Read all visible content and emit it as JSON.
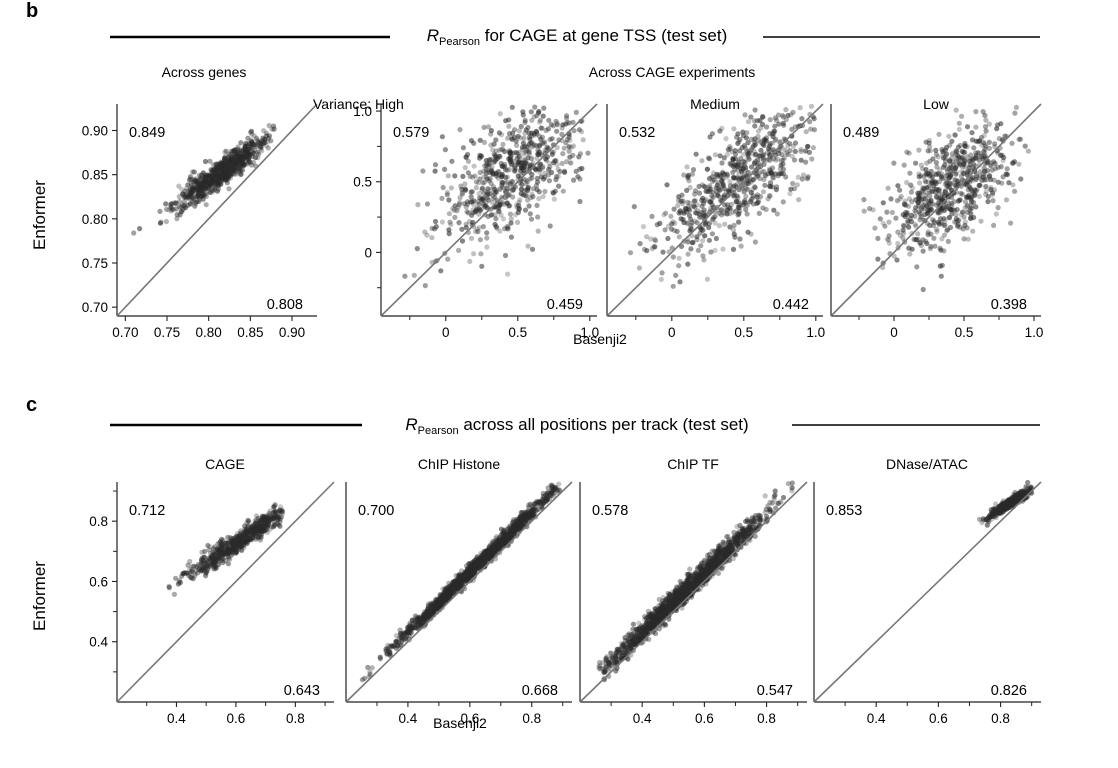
{
  "figure": {
    "panel_b": {
      "letter": "b",
      "title_prefix": "R",
      "title_subscript": "Pearson",
      "title_suffix": " for CAGE at gene TSS (test set)",
      "ylabel": "Enformer",
      "xlabel": "Basenji2",
      "group_label_genes": "Across genes",
      "group_label_experiments": "Across CAGE experiments"
    },
    "panel_c": {
      "letter": "c",
      "title_prefix": "R",
      "title_subscript": "Pearson",
      "title_suffix": " across all positions per track (test set)",
      "ylabel": "Enformer",
      "xlabel": "Basenji2"
    }
  },
  "chart_data": [
    {
      "type": "scatter",
      "panel": "b",
      "title": "Across genes",
      "xlabel": "",
      "ylabel": "Enformer",
      "xlim": [
        0.69,
        0.93
      ],
      "ylim": [
        0.69,
        0.93
      ],
      "xticks": [
        "0.70",
        "0.75",
        "0.80",
        "0.85",
        "0.90"
      ],
      "yticks": [
        "0.70",
        "0.75",
        "0.80",
        "0.85",
        "0.90"
      ],
      "x_minor": [],
      "y_minor": [],
      "diagonal": true,
      "enformer_r": "0.849",
      "basenji2_r": "0.808",
      "cloud": {
        "center": [
          0.815,
          0.853
        ],
        "spread": [
          0.028,
          0.021
        ],
        "count": 700,
        "corr": 0.92,
        "extent_x": [
          0.7,
          0.88
        ]
      }
    },
    {
      "type": "scatter",
      "panel": "b",
      "title": "Variance: High",
      "xlabel": "",
      "ylabel": "",
      "xlim": [
        -0.45,
        1.05
      ],
      "ylim": [
        -0.45,
        1.05
      ],
      "xticks": [
        "0",
        "0.5",
        "1.0"
      ],
      "yticks": [
        "0",
        "0.5",
        "1.0"
      ],
      "x_minor": [
        -0.25,
        0.25,
        0.75
      ],
      "y_minor": [
        -0.25,
        0.25,
        0.75
      ],
      "diagonal": true,
      "enformer_r": "0.579",
      "basenji2_r": "0.459",
      "cloud": {
        "center": [
          0.45,
          0.55
        ],
        "spread": [
          0.27,
          0.25
        ],
        "count": 650,
        "corr": 0.6,
        "extent_x": [
          -0.4,
          1.0
        ]
      }
    },
    {
      "type": "scatter",
      "panel": "b",
      "title": "Medium",
      "xlabel": "Basenji2",
      "ylabel": "",
      "xlim": [
        -0.45,
        1.05
      ],
      "ylim": [
        -0.45,
        1.05
      ],
      "xticks": [
        "0",
        "0.5",
        "1.0"
      ],
      "yticks": [],
      "x_minor": [
        -0.25,
        0.25,
        0.75
      ],
      "y_minor": [],
      "diagonal": true,
      "enformer_r": "0.532",
      "basenji2_r": "0.442",
      "cloud": {
        "center": [
          0.45,
          0.5
        ],
        "spread": [
          0.28,
          0.27
        ],
        "count": 650,
        "corr": 0.72,
        "extent_x": [
          -0.4,
          1.0
        ]
      }
    },
    {
      "type": "scatter",
      "panel": "b",
      "title": "Low",
      "xlabel": "",
      "ylabel": "",
      "xlim": [
        -0.45,
        1.05
      ],
      "ylim": [
        -0.45,
        1.05
      ],
      "xticks": [
        "0",
        "0.5",
        "1.0"
      ],
      "yticks": [],
      "x_minor": [
        -0.25,
        0.25,
        0.75
      ],
      "y_minor": [],
      "diagonal": true,
      "enformer_r": "0.489",
      "basenji2_r": "0.398",
      "cloud": {
        "center": [
          0.4,
          0.45
        ],
        "spread": [
          0.22,
          0.22
        ],
        "count": 650,
        "corr": 0.55,
        "extent_x": [
          -0.4,
          1.0
        ]
      }
    },
    {
      "type": "scatter",
      "panel": "c",
      "title": "CAGE",
      "xlabel": "",
      "ylabel": "Enformer",
      "xlim": [
        0.2,
        0.93
      ],
      "ylim": [
        0.2,
        0.93
      ],
      "xticks": [
        "0.4",
        "0.6",
        "0.8"
      ],
      "yticks": [
        "0.4",
        "0.6",
        "0.8"
      ],
      "x_minor": [
        0.3,
        0.5,
        0.7,
        0.9
      ],
      "y_minor": [
        0.3,
        0.5,
        0.7,
        0.9
      ],
      "diagonal": true,
      "enformer_r": "0.712",
      "basenji2_r": "0.643",
      "cloud": {
        "center": [
          0.62,
          0.74
        ],
        "spread": [
          0.09,
          0.06
        ],
        "count": 600,
        "corr": 0.95,
        "extent_x": [
          0.33,
          0.76
        ]
      }
    },
    {
      "type": "scatter",
      "panel": "c",
      "title": "ChIP Histone",
      "xlabel": "Basenji2",
      "ylabel": "",
      "xlim": [
        0.2,
        0.93
      ],
      "ylim": [
        0.2,
        0.93
      ],
      "xticks": [
        "0.4",
        "0.6",
        "0.8"
      ],
      "yticks": [],
      "x_minor": [
        0.3,
        0.5,
        0.7,
        0.9
      ],
      "y_minor": [],
      "diagonal": true,
      "enformer_r": "0.700",
      "basenji2_r": "0.668",
      "cloud": {
        "center": [
          0.62,
          0.65
        ],
        "spread": [
          0.13,
          0.13
        ],
        "count": 1400,
        "corr": 0.995,
        "extent_x": [
          0.25,
          0.9
        ]
      }
    },
    {
      "type": "scatter",
      "panel": "c",
      "title": "ChIP TF",
      "xlabel": "",
      "ylabel": "",
      "xlim": [
        0.2,
        0.93
      ],
      "ylim": [
        0.2,
        0.93
      ],
      "xticks": [
        "0.4",
        "0.6",
        "0.8"
      ],
      "yticks": [],
      "x_minor": [
        0.3,
        0.5,
        0.7,
        0.9
      ],
      "y_minor": [],
      "diagonal": true,
      "enformer_r": "0.578",
      "basenji2_r": "0.547",
      "cloud": {
        "center": [
          0.53,
          0.56
        ],
        "spread": [
          0.13,
          0.13
        ],
        "count": 1400,
        "corr": 0.99,
        "extent_x": [
          0.26,
          0.9
        ]
      }
    },
    {
      "type": "scatter",
      "panel": "c",
      "title": "DNase/ATAC",
      "xlabel": "",
      "ylabel": "",
      "xlim": [
        0.2,
        0.93
      ],
      "ylim": [
        0.2,
        0.93
      ],
      "xticks": [
        "0.4",
        "0.6",
        "0.8"
      ],
      "yticks": [],
      "x_minor": [
        0.3,
        0.5,
        0.7,
        0.9
      ],
      "y_minor": [],
      "diagonal": true,
      "enformer_r": "0.853",
      "basenji2_r": "0.826",
      "cloud": {
        "center": [
          0.83,
          0.86
        ],
        "spread": [
          0.035,
          0.025
        ],
        "count": 500,
        "corr": 0.95,
        "extent_x": [
          0.7,
          0.9
        ]
      }
    }
  ]
}
